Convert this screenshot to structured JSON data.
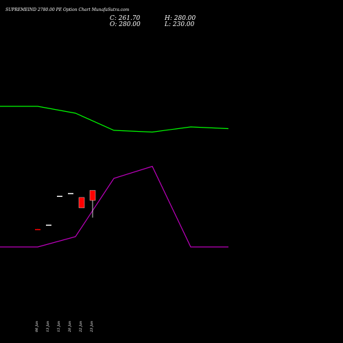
{
  "header": {
    "title": "SUPREMEIND 2780.00  PE Option  Chart MunafaSutra.com",
    "close_label": "C: 261.70",
    "high_label": "H: 280.00",
    "open_label": "O: 280.00",
    "low_label": "L: 230.00"
  },
  "chart_data": {
    "type": "candlestick",
    "title": "SUPREMEIND 2780.00  PE Option  Chart MunafaSutra.com",
    "dates": [
      "06 Jan",
      "13 Jan",
      "15 Jan",
      "20 Jan",
      "22 Jan",
      "23 Jan"
    ],
    "price_range": [
      195,
      340
    ],
    "candles": [
      {
        "date": "06 Jan",
        "open": 209,
        "high": 209,
        "low": 208,
        "close": 208
      },
      {
        "date": "13 Jan",
        "open": 217,
        "high": 217,
        "low": 217,
        "close": 217
      },
      {
        "date": "15 Jan",
        "open": 270,
        "high": 270,
        "low": 270,
        "close": 270
      },
      {
        "date": "20 Jan",
        "open": 275,
        "high": 275,
        "low": 275,
        "close": 275
      },
      {
        "date": "22 Jan",
        "open": 267,
        "high": 267,
        "low": 248,
        "close": 248
      },
      {
        "date": "23 Jan",
        "open": 280,
        "high": 280,
        "low": 230,
        "close": 261.7
      }
    ],
    "indicator_series": [
      {
        "color": "#00ff00",
        "x_positions": [
          0,
          55,
          110,
          166,
          222,
          278,
          333
        ],
        "values": [
          0.31,
          0.31,
          0.33,
          0.38,
          0.385,
          0.37,
          0.375
        ]
      },
      {
        "color": "#c000c0",
        "x_positions": [
          0,
          55,
          110,
          166,
          222,
          278,
          333
        ],
        "values": [
          0.72,
          0.72,
          0.69,
          0.52,
          0.485,
          0.72,
          0.72
        ]
      }
    ],
    "colors": {
      "bearish": "#ff0000",
      "bullish": "#00ff00",
      "doji": "#ffffff"
    }
  }
}
